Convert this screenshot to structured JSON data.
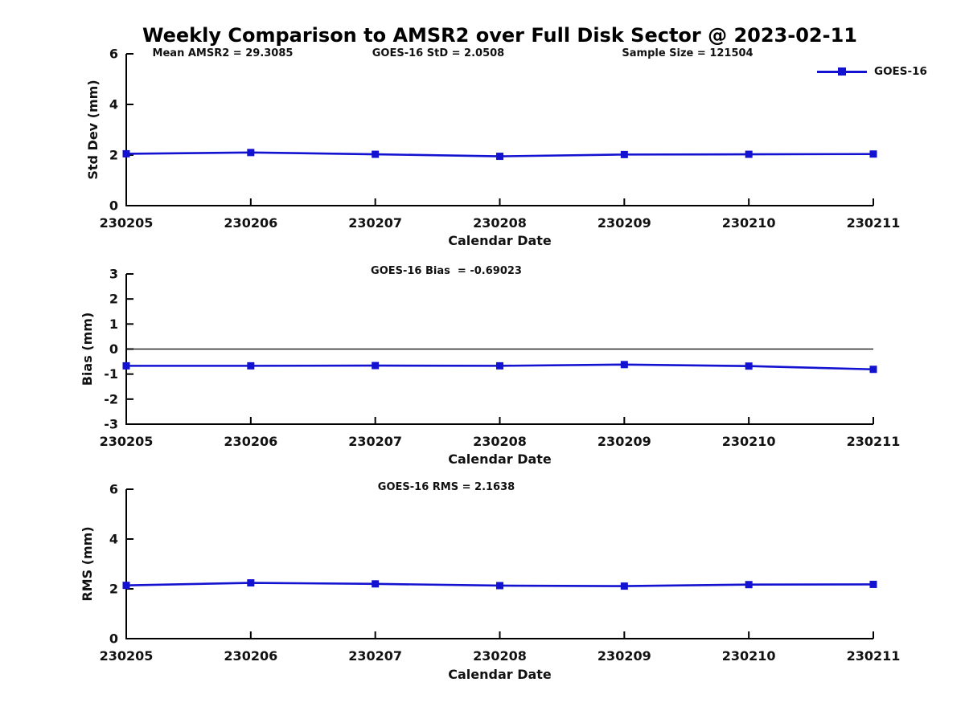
{
  "figure_title": "Weekly Comparison to AMSR2 over Full Disk Sector @ 2023-02-11",
  "top_annotations": [
    "Mean AMSR2 = 29.3085",
    "GOES-16 StD = 2.0508",
    "Sample Size = 121504"
  ],
  "legend": {
    "label": "GOES-16",
    "position": "top-right"
  },
  "colors": {
    "series": "#1212d0",
    "axis": "#000000",
    "text": "#111111",
    "zero_line": "#000000"
  },
  "chart_data": [
    {
      "type": "line",
      "name": "std-dev",
      "annotation": "",
      "xlabel": "Calendar Date",
      "ylabel": "Std Dev (mm)",
      "ylim": [
        0,
        6
      ],
      "yticks": [
        0,
        2,
        4,
        6
      ],
      "categories": [
        "230205",
        "230206",
        "230207",
        "230208",
        "230209",
        "230210",
        "230211"
      ],
      "series": [
        {
          "name": "GOES-16",
          "values": [
            2.05,
            2.1,
            2.03,
            1.95,
            2.02,
            2.03,
            2.04
          ]
        }
      ],
      "zero_line": false,
      "grid": false,
      "marker": "square"
    },
    {
      "type": "line",
      "name": "bias",
      "annotation": "GOES-16 Bias  = -0.69023",
      "xlabel": "Calendar Date",
      "ylabel": "Bias (mm)",
      "ylim": [
        -3,
        3
      ],
      "yticks": [
        -3,
        -2,
        -1,
        0,
        1,
        2,
        3
      ],
      "categories": [
        "230205",
        "230206",
        "230207",
        "230208",
        "230209",
        "230210",
        "230211"
      ],
      "series": [
        {
          "name": "GOES-16",
          "values": [
            -0.67,
            -0.67,
            -0.66,
            -0.67,
            -0.62,
            -0.68,
            -0.81
          ]
        }
      ],
      "zero_line": true,
      "grid": false,
      "marker": "square"
    },
    {
      "type": "line",
      "name": "rms",
      "annotation": "GOES-16 RMS = 2.1638",
      "xlabel": "Calendar Date",
      "ylabel": "RMS (mm)",
      "ylim": [
        0,
        6
      ],
      "yticks": [
        0,
        2,
        4,
        6
      ],
      "categories": [
        "230205",
        "230206",
        "230207",
        "230208",
        "230209",
        "230210",
        "230211"
      ],
      "series": [
        {
          "name": "GOES-16",
          "values": [
            2.14,
            2.24,
            2.2,
            2.13,
            2.11,
            2.17,
            2.18
          ]
        }
      ],
      "zero_line": false,
      "grid": false,
      "marker": "square"
    }
  ]
}
